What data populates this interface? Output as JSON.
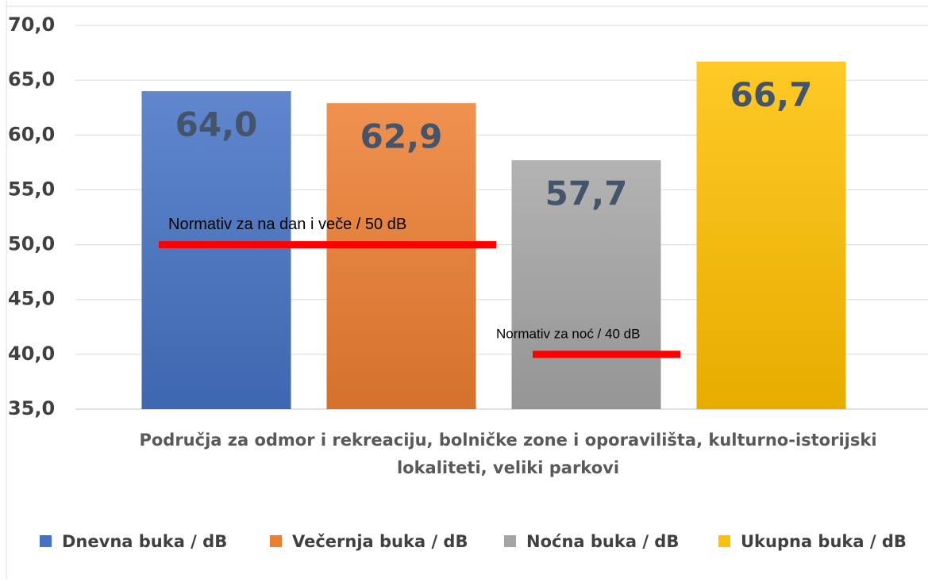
{
  "chart_data": {
    "type": "bar",
    "categories": [
      "Područja za odmor i rekreaciju, bolničke zone i oporavilišta, kulturno-istorijski lokaliteti, veliki parkovi"
    ],
    "series": [
      {
        "name": "Dnevna buka / dB",
        "color": "#4472c4",
        "values": [
          64.0
        ],
        "value_labels": [
          "64,0"
        ]
      },
      {
        "name": "Večernja buka / dB",
        "color": "#ed7d31",
        "values": [
          62.9
        ],
        "value_labels": [
          "62,9"
        ]
      },
      {
        "name": "Noćna buka / dB",
        "color": "#a5a5a5",
        "values": [
          57.7
        ],
        "value_labels": [
          "57,7"
        ]
      },
      {
        "name": "Ukupna buka / dB",
        "color": "#ffc000",
        "values": [
          66.7
        ],
        "value_labels": [
          "66,7"
        ]
      }
    ],
    "ylim": [
      35,
      70
    ],
    "yticks": [
      {
        "value": 35,
        "label": "35,0"
      },
      {
        "value": 40,
        "label": "40,0"
      },
      {
        "value": 45,
        "label": "45,0"
      },
      {
        "value": 50,
        "label": "50,0"
      },
      {
        "value": 55,
        "label": "55,0"
      },
      {
        "value": 60,
        "label": "60,0"
      },
      {
        "value": 65,
        "label": "65,0"
      },
      {
        "value": 70,
        "label": "70,0"
      }
    ],
    "grid": true,
    "legend": "bottom",
    "annotations": [
      {
        "text": "Normativ za na dan i veče / 50 dB",
        "value": 50,
        "color": "#ff0000"
      },
      {
        "text": "Normativ za noć / 40 dB",
        "value": 40,
        "color": "#ff0000"
      }
    ]
  }
}
